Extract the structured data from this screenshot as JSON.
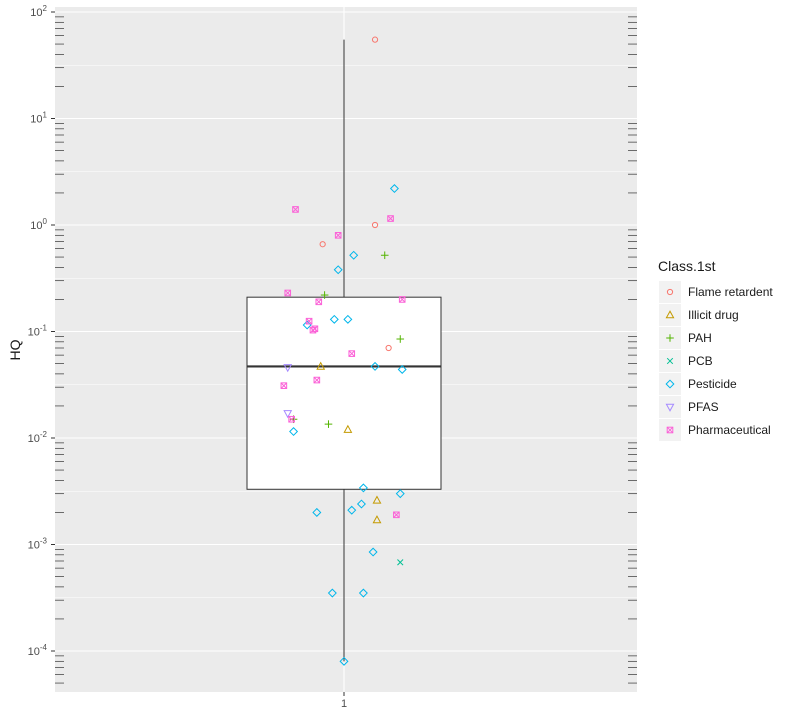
{
  "chart_data": {
    "type": "box",
    "ylabel": "HQ",
    "xlabel": "",
    "y_scale": "log10",
    "ylim": [
      5e-05,
      120
    ],
    "y_ticks": [
      {
        "value": 0.0001,
        "mantissa": "10",
        "exp": "-4"
      },
      {
        "value": 0.001,
        "mantissa": "10",
        "exp": "-3"
      },
      {
        "value": 0.01,
        "mantissa": "10",
        "exp": "-2"
      },
      {
        "value": 0.1,
        "mantissa": "10",
        "exp": "-1"
      },
      {
        "value": 1,
        "mantissa": "10",
        "exp": "0"
      },
      {
        "value": 10,
        "mantissa": "10",
        "exp": "1"
      },
      {
        "value": 100,
        "mantissa": "10",
        "exp": "2"
      }
    ],
    "categories": [
      "1"
    ],
    "grid": true,
    "box": {
      "whisker_low": 8e-05,
      "q1": 0.0033,
      "median": 0.047,
      "q3": 0.21,
      "whisker_high": 55
    },
    "legend": {
      "title": "Class.1st",
      "position": "right",
      "entries": [
        {
          "name": "Flame retardent",
          "color": "#F8766D",
          "shape": "circle"
        },
        {
          "name": "Illicit drug",
          "color": "#C49A00",
          "shape": "triangle"
        },
        {
          "name": "PAH",
          "color": "#53B400",
          "shape": "plus"
        },
        {
          "name": "PCB",
          "color": "#00C094",
          "shape": "cross"
        },
        {
          "name": "Pesticide",
          "color": "#00B6EB",
          "shape": "diamond"
        },
        {
          "name": "PFAS",
          "color": "#A58AFF",
          "shape": "triangle-down"
        },
        {
          "name": "Pharmaceutical",
          "color": "#FB61D7",
          "shape": "square-x"
        }
      ]
    },
    "points": [
      {
        "class": "Flame retardent",
        "jitter": 0.16,
        "y": 55
      },
      {
        "class": "Flame retardent",
        "jitter": 0.16,
        "y": 1.0
      },
      {
        "class": "Flame retardent",
        "jitter": -0.11,
        "y": 0.66
      },
      {
        "class": "Flame retardent",
        "jitter": 0.23,
        "y": 0.07
      },
      {
        "class": "Illicit drug",
        "jitter": -0.12,
        "y": 0.047
      },
      {
        "class": "Illicit drug",
        "jitter": 0.02,
        "y": 0.012
      },
      {
        "class": "Illicit drug",
        "jitter": 0.17,
        "y": 0.0026
      },
      {
        "class": "Illicit drug",
        "jitter": 0.17,
        "y": 0.0017
      },
      {
        "class": "PAH",
        "jitter": 0.21,
        "y": 0.52
      },
      {
        "class": "PAH",
        "jitter": -0.1,
        "y": 0.22
      },
      {
        "class": "PAH",
        "jitter": 0.29,
        "y": 0.085
      },
      {
        "class": "PAH",
        "jitter": -0.26,
        "y": 0.015
      },
      {
        "class": "PAH",
        "jitter": -0.08,
        "y": 0.0135
      },
      {
        "class": "PCB",
        "jitter": 0.29,
        "y": 0.00068
      },
      {
        "class": "Pesticide",
        "jitter": 0.26,
        "y": 2.2
      },
      {
        "class": "Pesticide",
        "jitter": 0.05,
        "y": 0.52
      },
      {
        "class": "Pesticide",
        "jitter": -0.03,
        "y": 0.38
      },
      {
        "class": "Pesticide",
        "jitter": -0.05,
        "y": 0.13
      },
      {
        "class": "Pesticide",
        "jitter": 0.02,
        "y": 0.13
      },
      {
        "class": "Pesticide",
        "jitter": -0.19,
        "y": 0.115
      },
      {
        "class": "Pesticide",
        "jitter": 0.16,
        "y": 0.047
      },
      {
        "class": "Pesticide",
        "jitter": 0.3,
        "y": 0.044
      },
      {
        "class": "Pesticide",
        "jitter": -0.26,
        "y": 0.0115
      },
      {
        "class": "Pesticide",
        "jitter": 0.1,
        "y": 0.0034
      },
      {
        "class": "Pesticide",
        "jitter": 0.29,
        "y": 0.003
      },
      {
        "class": "Pesticide",
        "jitter": 0.09,
        "y": 0.0024
      },
      {
        "class": "Pesticide",
        "jitter": 0.04,
        "y": 0.0021
      },
      {
        "class": "Pesticide",
        "jitter": -0.14,
        "y": 0.002
      },
      {
        "class": "Pesticide",
        "jitter": 0.15,
        "y": 0.00085
      },
      {
        "class": "Pesticide",
        "jitter": -0.06,
        "y": 0.00035
      },
      {
        "class": "Pesticide",
        "jitter": 0.1,
        "y": 0.00035
      },
      {
        "class": "Pesticide",
        "jitter": 0.0,
        "y": 8e-05
      },
      {
        "class": "PFAS",
        "jitter": -0.29,
        "y": 0.046
      },
      {
        "class": "PFAS",
        "jitter": -0.29,
        "y": 0.017
      },
      {
        "class": "Pharmaceutical",
        "jitter": -0.25,
        "y": 1.4
      },
      {
        "class": "Pharmaceutical",
        "jitter": 0.24,
        "y": 1.15
      },
      {
        "class": "Pharmaceutical",
        "jitter": -0.03,
        "y": 0.8
      },
      {
        "class": "Pharmaceutical",
        "jitter": -0.29,
        "y": 0.23
      },
      {
        "class": "Pharmaceutical",
        "jitter": 0.3,
        "y": 0.2
      },
      {
        "class": "Pharmaceutical",
        "jitter": -0.13,
        "y": 0.19
      },
      {
        "class": "Pharmaceutical",
        "jitter": -0.18,
        "y": 0.125
      },
      {
        "class": "Pharmaceutical",
        "jitter": -0.15,
        "y": 0.106
      },
      {
        "class": "Pharmaceutical",
        "jitter": -0.16,
        "y": 0.103
      },
      {
        "class": "Pharmaceutical",
        "jitter": 0.04,
        "y": 0.062
      },
      {
        "class": "Pharmaceutical",
        "jitter": -0.14,
        "y": 0.035
      },
      {
        "class": "Pharmaceutical",
        "jitter": -0.31,
        "y": 0.031
      },
      {
        "class": "Pharmaceutical",
        "jitter": -0.27,
        "y": 0.015
      },
      {
        "class": "Pharmaceutical",
        "jitter": 0.27,
        "y": 0.0019
      }
    ]
  }
}
